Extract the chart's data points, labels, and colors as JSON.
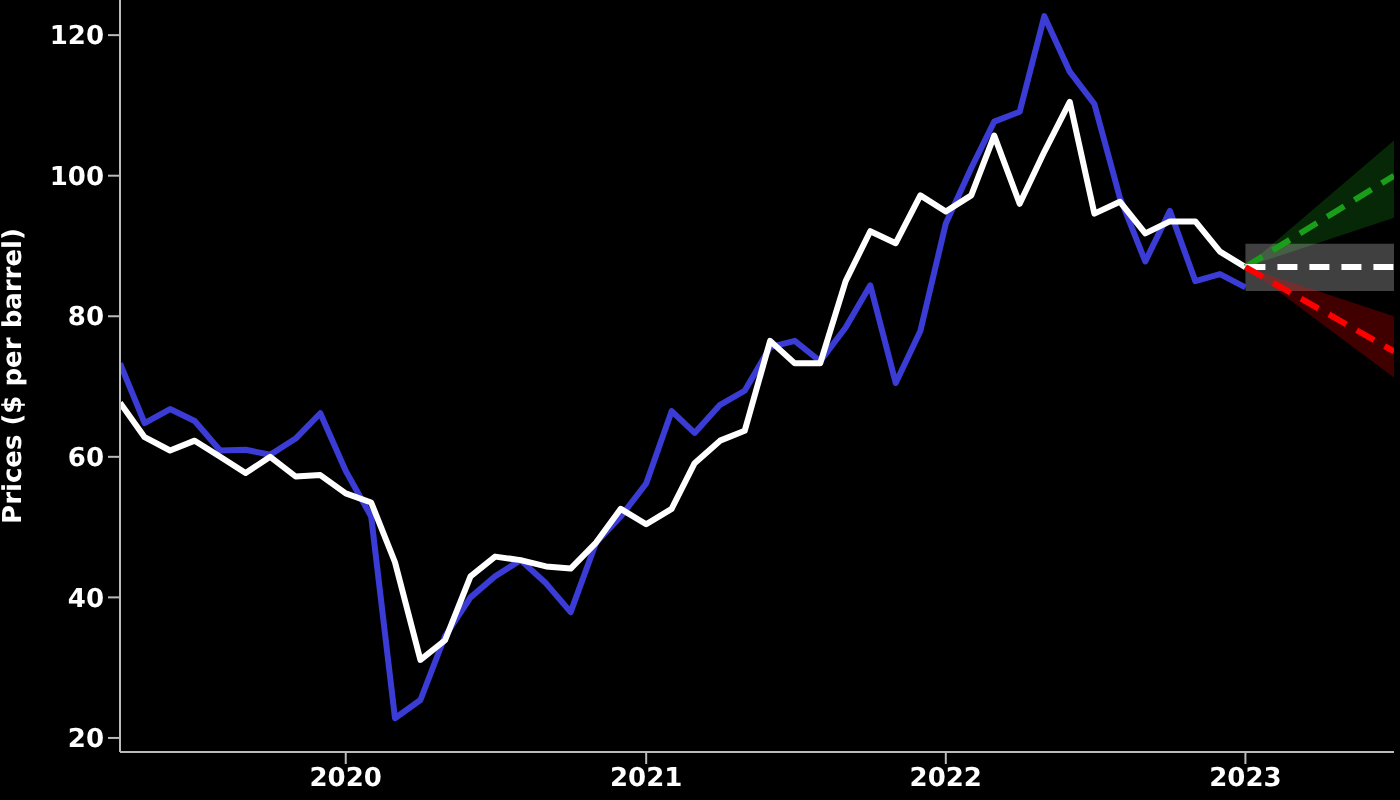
{
  "chart_data": {
    "type": "line",
    "ylabel": "Prices ($ per barrel)",
    "x": [
      "2019-04",
      "2019-05",
      "2019-06",
      "2019-07",
      "2019-08",
      "2019-09",
      "2019-10",
      "2019-11",
      "2019-12",
      "2020-01",
      "2020-02",
      "2020-03",
      "2020-04",
      "2020-05",
      "2020-06",
      "2020-07",
      "2020-08",
      "2020-09",
      "2020-10",
      "2020-11",
      "2020-12",
      "2021-01",
      "2021-02",
      "2021-03",
      "2021-04",
      "2021-05",
      "2021-06",
      "2021-07",
      "2021-08",
      "2021-09",
      "2021-10",
      "2021-11",
      "2021-12",
      "2022-01",
      "2022-02",
      "2022-03",
      "2022-04",
      "2022-05",
      "2022-06",
      "2022-07",
      "2022-08",
      "2022-09",
      "2022-10",
      "2022-11",
      "2022-12",
      "2023-01"
    ],
    "series": [
      {
        "color": "#3b3bd6",
        "values": [
          73.3,
          64.8,
          66.8,
          65.1,
          60.9,
          61,
          60.3,
          62.6,
          66.2,
          58,
          51.5,
          22.8,
          25.4,
          34.5,
          40,
          43,
          45.3,
          42,
          37.9,
          47.8,
          51.5,
          56.2,
          66.5,
          63.4,
          67.4,
          69.4,
          75.6,
          76.5,
          73.6,
          78.4,
          84.4,
          70.5,
          77.9,
          93.2,
          101.1,
          107.7,
          109.1,
          122.7,
          114.8,
          110.2,
          96.9,
          87.8,
          95,
          85,
          86,
          84.1
        ]
      },
      {
        "color": "#ffffff",
        "values": [
          67.7,
          62.8,
          60.9,
          62.3,
          60,
          57.7,
          60,
          57.2,
          57.4,
          54.8,
          53.5,
          45,
          31.1,
          33.9,
          43,
          45.8,
          45.3,
          44.4,
          44.1,
          47.8,
          52.6,
          50.4,
          52.6,
          59.1,
          62.3,
          63.7,
          76.5,
          73.3,
          73.3,
          85,
          92.1,
          90.4,
          97.2,
          94.9,
          97.2,
          105.7,
          96,
          103.4,
          110.5,
          94.6,
          96.3,
          91.8,
          93.5,
          93.5,
          89.2,
          87
        ]
      },
      {
        "color": "#1a9e1a",
        "line_style": "dashed",
        "x": [
          "2023-01",
          "2023-07"
        ],
        "values": [
          87,
          100
        ],
        "lower": [
          87,
          94
        ],
        "upper": [
          87,
          105
        ]
      },
      {
        "color": "#ffffff",
        "line_style": "dashed",
        "x": [
          "2023-01",
          "2023-07"
        ],
        "values": [
          87,
          87
        ],
        "lower": [
          83.6,
          83.6
        ],
        "upper": [
          90.3,
          90.3
        ]
      },
      {
        "color": "#ff0000",
        "line_style": "dashed",
        "x": [
          "2023-01",
          "2023-07"
        ],
        "values": [
          87,
          75
        ],
        "lower": [
          87,
          71.3
        ],
        "upper": [
          87,
          80
        ]
      }
    ],
    "xlim": [
      "2019-04",
      "2023-07"
    ],
    "xticks": [
      "2020",
      "2021",
      "2022",
      "2023"
    ],
    "ylim": [
      18,
      125
    ],
    "yticks": [
      20,
      40,
      60,
      80,
      100,
      120
    ],
    "marker": "none"
  }
}
